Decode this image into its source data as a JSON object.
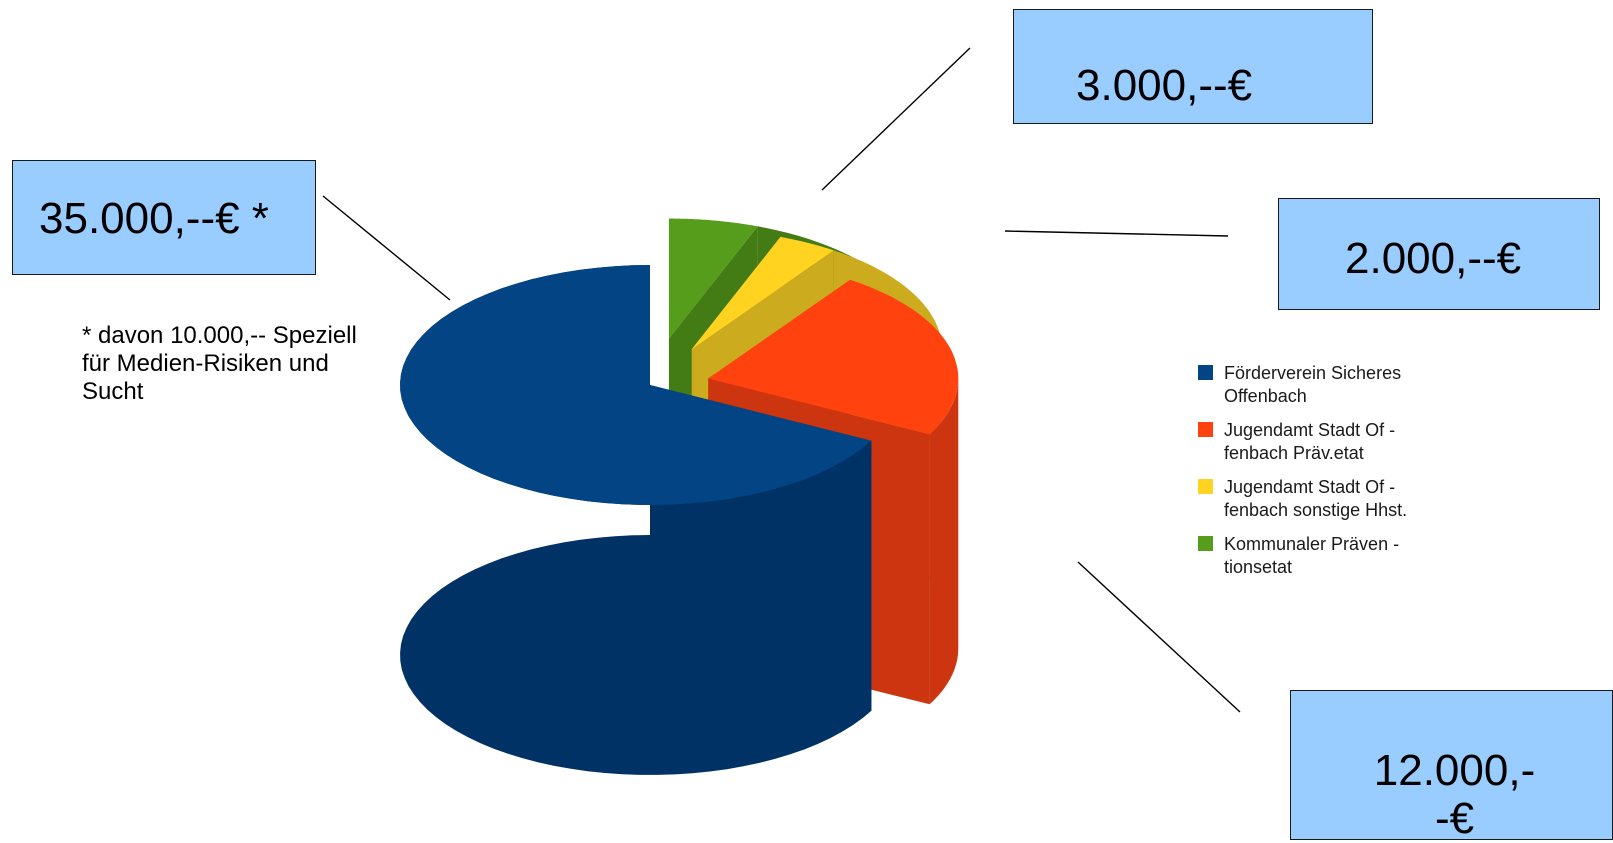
{
  "chart_data": {
    "type": "pie",
    "title": "",
    "slices": [
      {
        "name": "Förderverein Sicheres Offenbach",
        "value": 35000,
        "label": "35.000,--€ *",
        "color": "#024484",
        "color_dark": "#013266"
      },
      {
        "name": "Jugendamt Stadt Offenbach Präv.etat",
        "value": 12000,
        "label": "12.000,--€",
        "color": "#ff420e",
        "color_dark": "#cc3510"
      },
      {
        "name": "Jugendamt Stadt Offenbach sonstige Hhst.",
        "value": 2000,
        "label": "2.000,--€",
        "color": "#ffd320",
        "color_dark": "#ccab1e"
      },
      {
        "name": "Kommunaler Präventionsetat",
        "value": 3000,
        "label": "3.000,--€",
        "color": "#579d1c",
        "color_dark": "#437c15"
      }
    ],
    "legend": [
      {
        "text": "Förderverein Sicheres\nOffenbach",
        "color": "#024484"
      },
      {
        "text": "Jugendamt Stadt Of -\nfenbach Präv.etat",
        "color": "#ff420e"
      },
      {
        "text": "Jugendamt Stadt Of -\nfenbach sonstige Hhst.",
        "color": "#ffd320"
      },
      {
        "text": "Kommunaler Präven -\ntionsetat",
        "color": "#579d1c"
      }
    ],
    "legend_position": "right",
    "footnote": "* davon 10.000,-- Speziell für Medien-Risiken und Sucht",
    "callout_color": "#99ccff"
  }
}
